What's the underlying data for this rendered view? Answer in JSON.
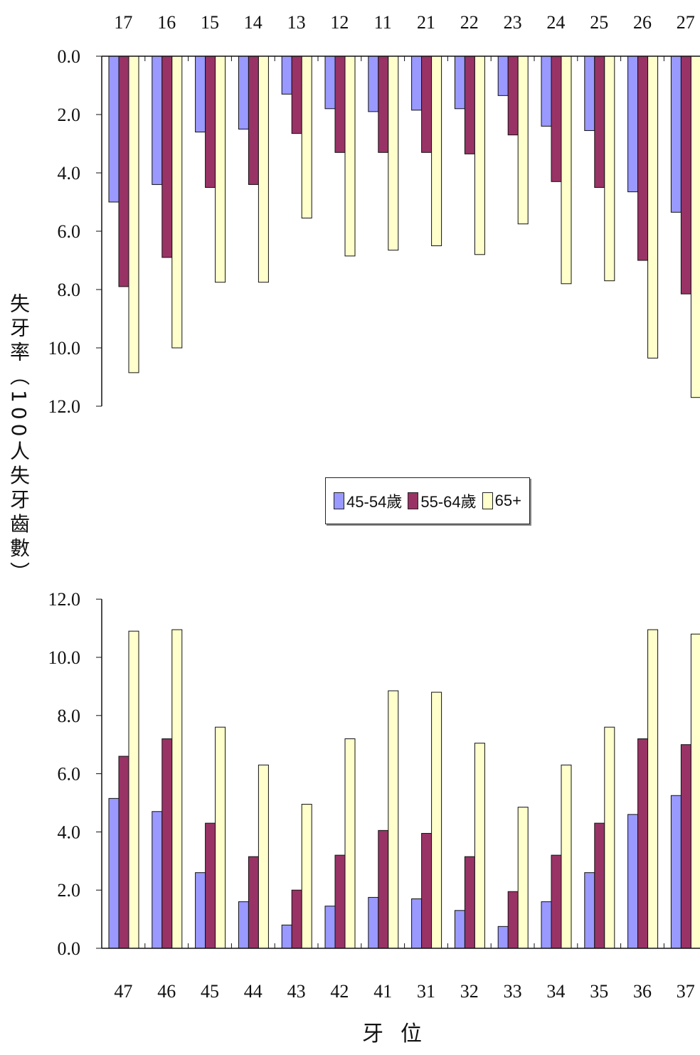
{
  "chart_data": [
    {
      "type": "bar",
      "categories": [
        "17",
        "16",
        "15",
        "14",
        "13",
        "12",
        "11",
        "21",
        "22",
        "23",
        "24",
        "25",
        "26",
        "27"
      ],
      "yticks": [
        "0.0",
        "2.0",
        "4.0",
        "6.0",
        "8.0",
        "10.0",
        "12.0"
      ],
      "ylim": [
        0,
        12
      ],
      "reversed": true,
      "series": [
        {
          "name": "45-54歲",
          "color": "#9999ff",
          "values": [
            5.0,
            4.4,
            2.6,
            2.5,
            1.3,
            1.8,
            1.9,
            1.85,
            1.8,
            1.35,
            2.4,
            2.55,
            4.65,
            5.35
          ]
        },
        {
          "name": "55-64歲",
          "color": "#993366",
          "values": [
            7.9,
            6.9,
            4.5,
            4.4,
            2.65,
            3.3,
            3.3,
            3.3,
            3.35,
            2.7,
            4.3,
            4.5,
            7.0,
            8.15
          ]
        },
        {
          "name": "65+",
          "color": "#ffffcc",
          "values": [
            10.85,
            10.0,
            7.75,
            7.75,
            5.55,
            6.85,
            6.65,
            6.5,
            6.8,
            5.75,
            7.8,
            7.7,
            10.35,
            11.7
          ]
        }
      ]
    },
    {
      "type": "bar",
      "categories": [
        "47",
        "46",
        "45",
        "44",
        "43",
        "42",
        "41",
        "31",
        "32",
        "33",
        "34",
        "35",
        "36",
        "37"
      ],
      "yticks": [
        "0.0",
        "2.0",
        "4.0",
        "6.0",
        "8.0",
        "10.0",
        "12.0"
      ],
      "ylim": [
        0,
        12
      ],
      "reversed": false,
      "series": [
        {
          "name": "45-54歲",
          "color": "#9999ff",
          "values": [
            5.15,
            4.7,
            2.6,
            1.6,
            0.8,
            1.45,
            1.75,
            1.7,
            1.3,
            0.75,
            1.6,
            2.6,
            4.6,
            5.25
          ]
        },
        {
          "name": "55-64歲",
          "color": "#993366",
          "values": [
            6.6,
            7.2,
            4.3,
            3.15,
            2.0,
            3.2,
            4.05,
            3.95,
            3.15,
            1.95,
            3.2,
            4.3,
            7.2,
            7.0
          ]
        },
        {
          "name": "65+",
          "color": "#ffffcc",
          "values": [
            10.9,
            10.95,
            7.6,
            6.3,
            4.95,
            7.2,
            8.85,
            8.8,
            7.05,
            4.85,
            6.3,
            7.6,
            10.95,
            10.8
          ]
        }
      ]
    }
  ],
  "legend": [
    {
      "label": "45-54歲",
      "color": "#9999ff"
    },
    {
      "label": "55-64歲",
      "color": "#993366"
    },
    {
      "label": "65+",
      "color": "#ffffcc"
    }
  ],
  "ylabel": "失牙率（100人失牙齒數）",
  "xlabel": "牙位"
}
